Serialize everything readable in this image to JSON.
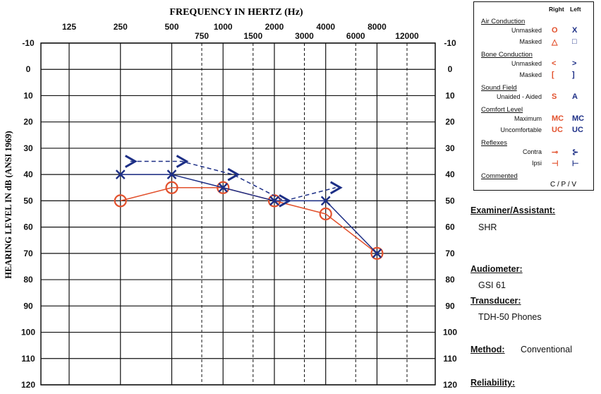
{
  "chart_data": {
    "type": "scatter",
    "title": "FREQUENCY IN HERTZ (Hz)",
    "ylabel": "HEARING LEVEL IN dB (ANSI 1969)",
    "x_octave": [
      125,
      250,
      500,
      1000,
      2000,
      4000,
      8000
    ],
    "x_mid": [
      750,
      1500,
      3000,
      6000,
      12000
    ],
    "y_ticks": [
      -10,
      0,
      10,
      20,
      30,
      40,
      50,
      60,
      70,
      80,
      90,
      100,
      110,
      120
    ],
    "ylim": [
      -10,
      120
    ],
    "y_inverted": true,
    "x_scale": "log",
    "series": [
      {
        "name": "Right Air Conduction Unmasked",
        "symbol": "circle",
        "color": "#e2512d",
        "line": "solid",
        "x": [
          250,
          500,
          1000,
          2000,
          4000,
          8000
        ],
        "y": [
          50,
          45,
          45,
          50,
          55,
          70
        ]
      },
      {
        "name": "Left Air Conduction Unmasked",
        "symbol": "x",
        "color": "#1d2f86",
        "line": "solid",
        "x": [
          250,
          500,
          1000,
          2000,
          4000,
          8000
        ],
        "y": [
          40,
          40,
          45,
          50,
          50,
          70
        ]
      },
      {
        "name": "Left Bone Conduction Unmasked",
        "symbol": "gt",
        "color": "#1d2f86",
        "line": "dashed",
        "x": [
          250,
          500,
          1000,
          2000,
          4000
        ],
        "y": [
          35,
          35,
          40,
          50,
          45
        ]
      }
    ]
  },
  "legend": {
    "right_label": "Right",
    "left_label": "Left",
    "sections": [
      {
        "title": "Air Conduction",
        "rows": [
          {
            "label": "Unmasked",
            "right": "O",
            "left": "X"
          },
          {
            "label": "Masked",
            "right": "△",
            "left": "□"
          }
        ]
      },
      {
        "title": "Bone Conduction",
        "rows": [
          {
            "label": "Unmasked",
            "right": "<",
            "left": ">"
          },
          {
            "label": "Masked",
            "right": "[",
            "left": "]"
          }
        ]
      },
      {
        "title": "Sound Field",
        "rows": [
          {
            "label": "Unaided - Aided",
            "right": "S",
            "left": "A"
          }
        ]
      },
      {
        "title": "Comfort Level",
        "rows": [
          {
            "label": "Maximum",
            "right": "MC",
            "left": "MC"
          },
          {
            "label": "Uncomfortable",
            "right": "UC",
            "left": "UC"
          }
        ]
      },
      {
        "title": "Reflexes",
        "rows": [
          {
            "label": "Contra",
            "right": "⊸",
            "left": "⊱"
          },
          {
            "label": "Ipsi",
            "right": "⊣",
            "left": "⊢"
          }
        ]
      },
      {
        "title": "Commented",
        "rows": [
          {
            "label": "",
            "right": "C / P / V",
            "left": ""
          }
        ]
      }
    ]
  },
  "info": {
    "examiner_label": "Examiner/Assistant:",
    "examiner_value": "SHR",
    "audiometer_label": "Audiometer:",
    "audiometer_value": "GSI 61",
    "transducer_label": "Transducer:",
    "transducer_value": "TDH-50 Phones",
    "method_label": "Method:",
    "method_value": "Conventional",
    "reliability_label": "Reliability:"
  },
  "colors": {
    "right": "#e2512d",
    "left": "#1d2f86",
    "grid": "#111111"
  }
}
